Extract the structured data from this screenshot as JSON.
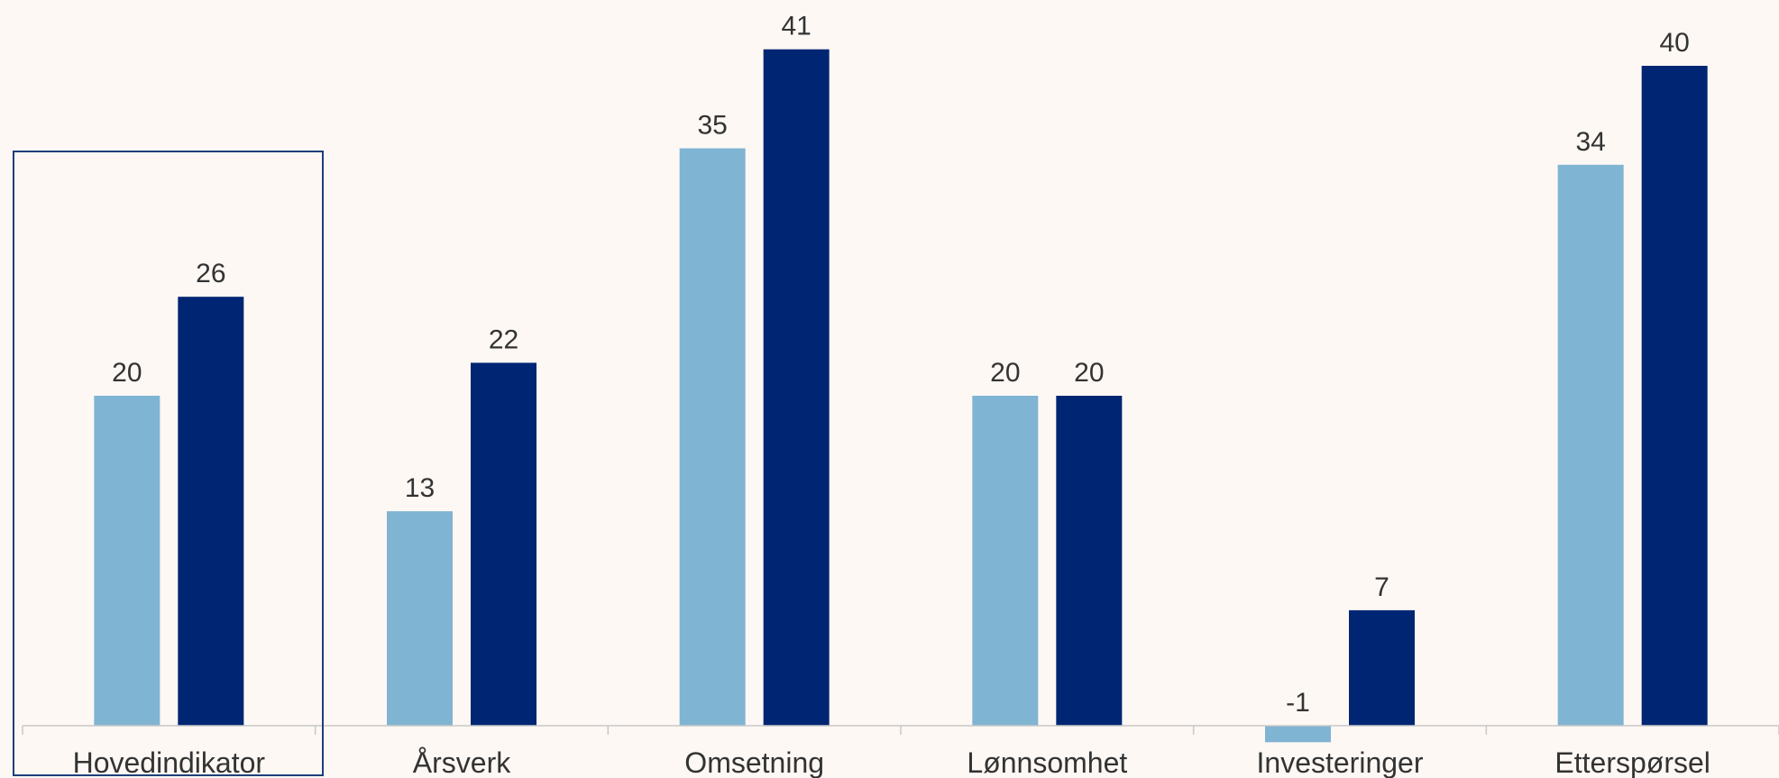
{
  "chart_data": {
    "type": "bar",
    "categories": [
      "Hovedindikator",
      "Årsverk",
      "Omsetning",
      "Lønnsomhet",
      "Investeringer",
      "Etterspørsel"
    ],
    "series": [
      {
        "values": [
          20,
          13,
          35,
          20,
          -1,
          34
        ],
        "color": "#80b4d3"
      },
      {
        "values": [
          26,
          22,
          41,
          20,
          7,
          40
        ],
        "color": "#002573"
      }
    ],
    "highlight_category": "Hovedindikator",
    "highlight_color": "#1f3f7a",
    "axis_color": "#c8c8c8",
    "grid": false,
    "legend": "none"
  }
}
